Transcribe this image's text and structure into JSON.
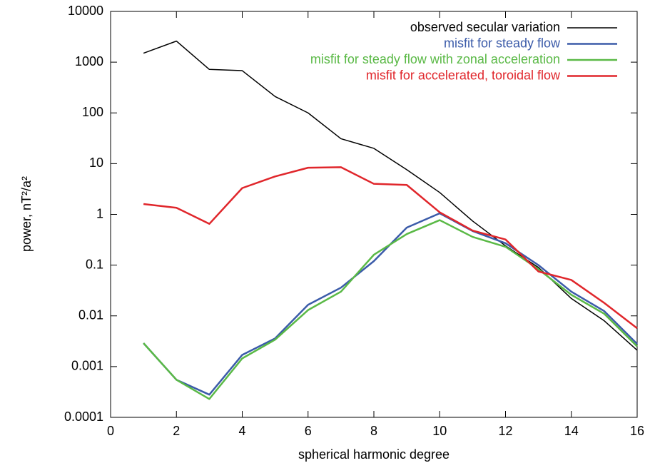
{
  "chart_data": {
    "type": "line",
    "xlabel": "spherical harmonic degree",
    "ylabel": "power, nT²/a²",
    "x": [
      1,
      2,
      3,
      4,
      5,
      6,
      7,
      8,
      9,
      10,
      11,
      12,
      13,
      14,
      15,
      16
    ],
    "series": [
      {
        "name": "observed secular variation",
        "color": "#000000",
        "values": [
          1500,
          2600,
          720,
          680,
          210,
          100,
          31,
          20,
          7.6,
          2.7,
          0.74,
          0.24,
          0.09,
          0.022,
          0.008,
          0.0021
        ]
      },
      {
        "name": "misfit for steady flow",
        "color": "#3b5ba9",
        "values": [
          0.0029,
          0.00055,
          0.00028,
          0.0017,
          0.0036,
          0.0165,
          0.036,
          0.12,
          0.55,
          1.05,
          0.47,
          0.27,
          0.1,
          0.03,
          0.0124,
          0.0028
        ]
      },
      {
        "name": "misfit for steady flow with zonal acceleration",
        "color": "#5ab946",
        "values": [
          0.0029,
          0.00055,
          0.00023,
          0.00145,
          0.0034,
          0.013,
          0.03,
          0.16,
          0.41,
          0.77,
          0.36,
          0.23,
          0.083,
          0.026,
          0.011,
          0.0025
        ]
      },
      {
        "name": "misfit for accelerated, toroidal flow",
        "color": "#e0262b",
        "values": [
          1.6,
          1.35,
          0.65,
          3.3,
          5.6,
          8.3,
          8.5,
          4.0,
          3.8,
          1.1,
          0.48,
          0.32,
          0.075,
          0.051,
          0.018,
          0.0057
        ]
      }
    ],
    "xlim": [
      0,
      16
    ],
    "xticks": [
      0,
      2,
      4,
      6,
      8,
      10,
      12,
      14,
      16
    ],
    "ylim": [
      0.0001,
      10000
    ],
    "yticks": [
      0.0001,
      0.001,
      0.01,
      0.1,
      1,
      10,
      100,
      1000,
      10000
    ],
    "ylog": true,
    "grid": false,
    "legend": "top-right"
  }
}
